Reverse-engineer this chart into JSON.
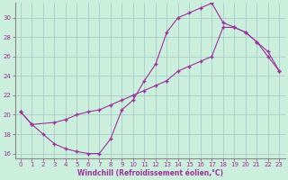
{
  "xlabel": "Windchill (Refroidissement éolien,°C)",
  "bg_color": "#cceedd",
  "grid_color": "#aacccc",
  "line_color": "#993399",
  "xlim": [
    -0.5,
    23.5
  ],
  "ylim": [
    15.5,
    31.5
  ],
  "xticks": [
    0,
    1,
    2,
    3,
    4,
    5,
    6,
    7,
    8,
    9,
    10,
    11,
    12,
    13,
    14,
    15,
    16,
    17,
    18,
    19,
    20,
    21,
    22,
    23
  ],
  "yticks": [
    16,
    18,
    20,
    22,
    24,
    26,
    28,
    30
  ],
  "series1_x": [
    0,
    1,
    2,
    3,
    4,
    5,
    6,
    7,
    8,
    9,
    10,
    11,
    12,
    13,
    14,
    15,
    16,
    17
  ],
  "series1_y": [
    20.3,
    19.0,
    18.0,
    17.0,
    16.5,
    16.2,
    16.0,
    16.0,
    17.5,
    20.5,
    21.5,
    23.5,
    25.2,
    28.5,
    30.0,
    30.5,
    31.0,
    31.5
  ],
  "series2_x": [
    0,
    1,
    3,
    4,
    5,
    6,
    7,
    8,
    9,
    10,
    11,
    12,
    13,
    14,
    15,
    16,
    17,
    18,
    19,
    20,
    21,
    22,
    23
  ],
  "series2_y": [
    20.3,
    19.0,
    19.2,
    19.5,
    20.0,
    20.3,
    20.5,
    21.0,
    21.5,
    22.0,
    22.5,
    23.0,
    23.5,
    24.5,
    25.0,
    25.5,
    26.0,
    29.0,
    29.0,
    28.5,
    27.5,
    26.0,
    24.5
  ],
  "series3_x": [
    17,
    18,
    19,
    20,
    21,
    22,
    23
  ],
  "series3_y": [
    31.5,
    29.5,
    29.0,
    28.5,
    27.5,
    26.5,
    24.5
  ]
}
